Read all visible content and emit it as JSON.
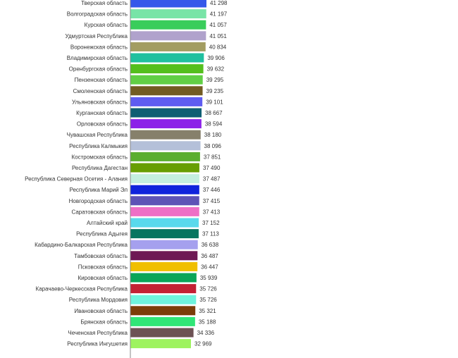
{
  "chart_data": {
    "type": "bar",
    "orientation": "horizontal",
    "title": "",
    "xlabel": "",
    "ylabel": "",
    "grid": false,
    "legend": "none",
    "xlim": [
      0,
      41298
    ],
    "categories": [
      "Тверская область",
      "Волгоградская область",
      "Курская область",
      "Удмуртская Республика",
      "Воронежская область",
      "Владимирская область",
      "Оренбургская область",
      "Пензенская область",
      "Смоленская область",
      "Ульяновская область",
      "Курганская область",
      "Орловская область",
      "Чувашская Республика",
      "Республика Калмыкия",
      "Костромская область",
      "Республика Дагестан",
      "Республика Северная  Осетия - Алания",
      "Республика Марий Эл",
      "Новгородская область",
      "Саратовская область",
      "Алтайский край",
      "Республика Адыгея",
      "Кабардино-Балкарская Республика",
      "Тамбовская область",
      "Псковская область",
      "Кировская область",
      "Карачаево-Черкесская Республика",
      "Республика Мордовия",
      "Ивановская область",
      "Брянская область",
      "Чеченская Республика",
      "Республика Ингушетия"
    ],
    "values": [
      41298,
      41197,
      41057,
      41051,
      40834,
      39906,
      39632,
      39295,
      39235,
      39101,
      38667,
      38594,
      38180,
      38096,
      37851,
      37490,
      37487,
      37446,
      37415,
      37413,
      37152,
      37113,
      36638,
      36487,
      36447,
      35939,
      35726,
      35726,
      35321,
      35188,
      34336,
      32969
    ],
    "value_labels": [
      "41 298",
      "41 197",
      "41 057",
      "41 051",
      "40 834",
      "39 906",
      "39 632",
      "39 295",
      "39 235",
      "39 101",
      "38 667",
      "38 594",
      "38 180",
      "38 096",
      "37 851",
      "37 490",
      "37 487",
      "37 446",
      "37 415",
      "37 413",
      "37 152",
      "37 113",
      "36 638",
      "36 487",
      "36 447",
      "35 939",
      "35 726",
      "35 726",
      "35 321",
      "35 188",
      "34 336",
      "32 969"
    ],
    "colors": [
      "#3558ea",
      "#78e4a7",
      "#39cd5b",
      "#b0a2cc",
      "#a39d62",
      "#20c09f",
      "#54bf1d",
      "#61cf45",
      "#725b22",
      "#5f5cf1",
      "#0f5f73",
      "#8c21e8",
      "#86806b",
      "#b4c0d9",
      "#5aae2f",
      "#679e03",
      "#c4efdf",
      "#1024dc",
      "#5e53b6",
      "#ee6fc6",
      "#5ad9ec",
      "#087560",
      "#a5a0ee",
      "#6e1a54",
      "#f0bf00",
      "#0aa558",
      "#c42034",
      "#6ff3dd",
      "#7c3d09",
      "#31e677",
      "#6d5254",
      "#9ef35f"
    ]
  }
}
